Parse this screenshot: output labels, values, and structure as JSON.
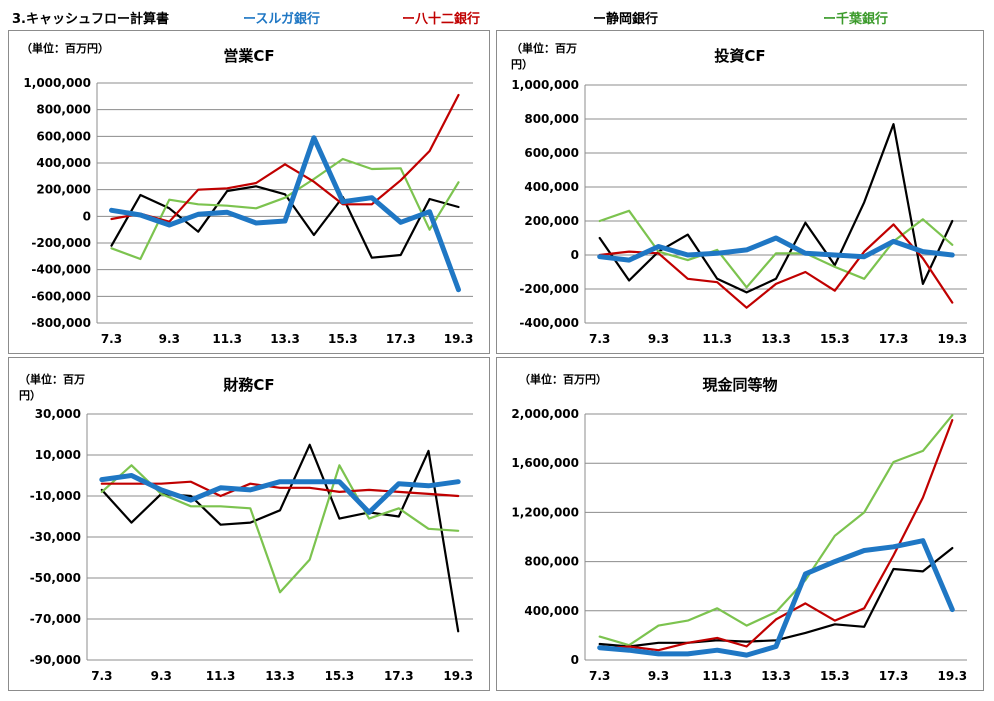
{
  "header": {
    "title": "3.キャッシュフロー計算書",
    "legend": [
      {
        "label": "ースルガ銀行",
        "color": "#1f77c4"
      },
      {
        "label": "ー八十二銀行",
        "color": "#c00000"
      },
      {
        "label": "ー静岡銀行",
        "color": "#000000"
      },
      {
        "label": "ー千葉銀行",
        "color": "#7cc34f"
      }
    ]
  },
  "series_names": [
    "スルガ銀行",
    "八十二銀行",
    "静岡銀行",
    "千葉銀行"
  ],
  "colors": {
    "suruga": "#1f77c4",
    "hachijuni": "#c00000",
    "shizuoka": "#000000",
    "chiba": "#7cc34f"
  },
  "chart_data": [
    {
      "type": "line",
      "title": "営業CF",
      "unit_label": "（単位：百万円）",
      "x": [
        "7.3",
        "8.3",
        "9.3",
        "10.3",
        "11.3",
        "12.3",
        "13.3",
        "14.3",
        "15.3",
        "16.3",
        "17.3",
        "18.3",
        "19.3"
      ],
      "x_tick_labels": [
        "7.3",
        "9.3",
        "11.3",
        "13.3",
        "15.3",
        "17.3",
        "19.3"
      ],
      "ylim": [
        -800000,
        1000000
      ],
      "y_ticks": [
        1000000,
        800000,
        600000,
        400000,
        200000,
        0,
        -200000,
        -400000,
        -600000,
        -800000
      ],
      "y_tick_labels": [
        "1,000,000",
        "800,000",
        "600,000",
        "400,000",
        "200,000",
        "0",
        "-200,000",
        "-400,000",
        "-600,000",
        "-800,000"
      ],
      "series": [
        {
          "name": "スルガ銀行",
          "values": [
            45000,
            10000,
            -65000,
            15000,
            30000,
            -50000,
            -35000,
            590000,
            110000,
            140000,
            -45000,
            35000,
            -550000
          ]
        },
        {
          "name": "八十二銀行",
          "values": [
            -20000,
            20000,
            -40000,
            200000,
            210000,
            250000,
            390000,
            260000,
            90000,
            90000,
            270000,
            490000,
            910000
          ]
        },
        {
          "name": "静岡銀行",
          "values": [
            -220000,
            160000,
            60000,
            -115000,
            190000,
            225000,
            165000,
            -140000,
            145000,
            -310000,
            -290000,
            130000,
            70000
          ]
        },
        {
          "name": "千葉銀行",
          "values": [
            -240000,
            -320000,
            125000,
            90000,
            80000,
            60000,
            140000,
            280000,
            430000,
            355000,
            360000,
            -100000,
            255000
          ]
        }
      ]
    },
    {
      "type": "line",
      "title": "投資CF",
      "unit_label": "（単位：百万円）",
      "x": [
        "7.3",
        "8.3",
        "9.3",
        "10.3",
        "11.3",
        "12.3",
        "13.3",
        "14.3",
        "15.3",
        "16.3",
        "17.3",
        "18.3",
        "19.3"
      ],
      "x_tick_labels": [
        "7.3",
        "9.3",
        "11.3",
        "13.3",
        "15.3",
        "17.3",
        "19.3"
      ],
      "ylim": [
        -400000,
        1000000
      ],
      "y_ticks": [
        1000000,
        800000,
        600000,
        400000,
        200000,
        0,
        -200000,
        -400000
      ],
      "y_tick_labels": [
        "1,000,000",
        "800,000",
        "600,000",
        "400,000",
        "200,000",
        "0",
        "-200,000",
        "-400,000"
      ],
      "series": [
        {
          "name": "スルガ銀行",
          "values": [
            -10000,
            -30000,
            50000,
            0,
            10000,
            30000,
            100000,
            10000,
            0,
            -10000,
            80000,
            20000,
            0
          ]
        },
        {
          "name": "八十二銀行",
          "values": [
            0,
            20000,
            10000,
            -140000,
            -160000,
            -310000,
            -170000,
            -100000,
            -210000,
            20000,
            180000,
            -20000,
            -280000
          ]
        },
        {
          "name": "静岡銀行",
          "values": [
            100000,
            -150000,
            20000,
            120000,
            -140000,
            -220000,
            -140000,
            190000,
            -60000,
            310000,
            770000,
            -170000,
            200000
          ]
        },
        {
          "name": "千葉銀行",
          "values": [
            200000,
            260000,
            20000,
            -30000,
            30000,
            -190000,
            10000,
            10000,
            -70000,
            -140000,
            80000,
            210000,
            60000
          ]
        }
      ]
    },
    {
      "type": "line",
      "title": "財務CF",
      "unit_label": "（単位：百万円）",
      "x": [
        "7.3",
        "8.3",
        "9.3",
        "10.3",
        "11.3",
        "12.3",
        "13.3",
        "14.3",
        "15.3",
        "16.3",
        "17.3",
        "18.3",
        "19.3"
      ],
      "x_tick_labels": [
        "7.3",
        "9.3",
        "11.3",
        "13.3",
        "15.3",
        "17.3",
        "19.3"
      ],
      "ylim": [
        -90000,
        30000
      ],
      "y_ticks": [
        30000,
        10000,
        -10000,
        -30000,
        -50000,
        -70000,
        -90000
      ],
      "y_tick_labels": [
        "30,000",
        "10,000",
        "-10,000",
        "-30,000",
        "-50,000",
        "-70,000",
        "-90,000"
      ],
      "series": [
        {
          "name": "スルガ銀行",
          "values": [
            -2000,
            0,
            -7000,
            -12000,
            -6000,
            -7000,
            -3000,
            -3000,
            -3000,
            -18000,
            -4000,
            -5000,
            -3000
          ]
        },
        {
          "name": "八十二銀行",
          "values": [
            -4000,
            -4000,
            -4000,
            -3000,
            -10000,
            -4000,
            -6000,
            -6000,
            -8000,
            -7000,
            -8000,
            -9000,
            -10000
          ]
        },
        {
          "name": "静岡銀行",
          "values": [
            -7000,
            -23000,
            -9000,
            -10000,
            -24000,
            -23000,
            -17000,
            15000,
            -21000,
            -18000,
            -20000,
            12000,
            -76000
          ]
        },
        {
          "name": "千葉銀行",
          "values": [
            -8000,
            5000,
            -9000,
            -15000,
            -15000,
            -16000,
            -57000,
            -41000,
            5000,
            -21000,
            -16000,
            -26000,
            -27000
          ]
        }
      ]
    },
    {
      "type": "line",
      "title": "現金同等物",
      "unit_label": "（単位：百万円）",
      "x": [
        "7.3",
        "8.3",
        "9.3",
        "10.3",
        "11.3",
        "12.3",
        "13.3",
        "14.3",
        "15.3",
        "16.3",
        "17.3",
        "18.3",
        "19.3"
      ],
      "x_tick_labels": [
        "7.3",
        "9.3",
        "11.3",
        "13.3",
        "15.3",
        "17.3",
        "19.3"
      ],
      "ylim": [
        0,
        2000000
      ],
      "y_ticks": [
        2000000,
        1600000,
        1200000,
        800000,
        400000,
        0
      ],
      "y_tick_labels": [
        "2,000,000",
        "1,600,000",
        "1,200,000",
        "800,000",
        "400,000",
        "0"
      ],
      "series": [
        {
          "name": "スルガ銀行",
          "values": [
            100000,
            80000,
            50000,
            50000,
            80000,
            40000,
            110000,
            700000,
            800000,
            890000,
            920000,
            970000,
            410000
          ]
        },
        {
          "name": "八十二銀行",
          "values": [
            90000,
            110000,
            80000,
            140000,
            180000,
            110000,
            330000,
            460000,
            320000,
            420000,
            850000,
            1320000,
            1950000
          ]
        },
        {
          "name": "静岡銀行",
          "values": [
            130000,
            110000,
            140000,
            140000,
            160000,
            150000,
            160000,
            220000,
            290000,
            270000,
            740000,
            720000,
            910000
          ]
        },
        {
          "name": "千葉銀行",
          "values": [
            190000,
            120000,
            280000,
            320000,
            420000,
            280000,
            390000,
            650000,
            1010000,
            1200000,
            1610000,
            1700000,
            1990000
          ]
        }
      ]
    }
  ]
}
